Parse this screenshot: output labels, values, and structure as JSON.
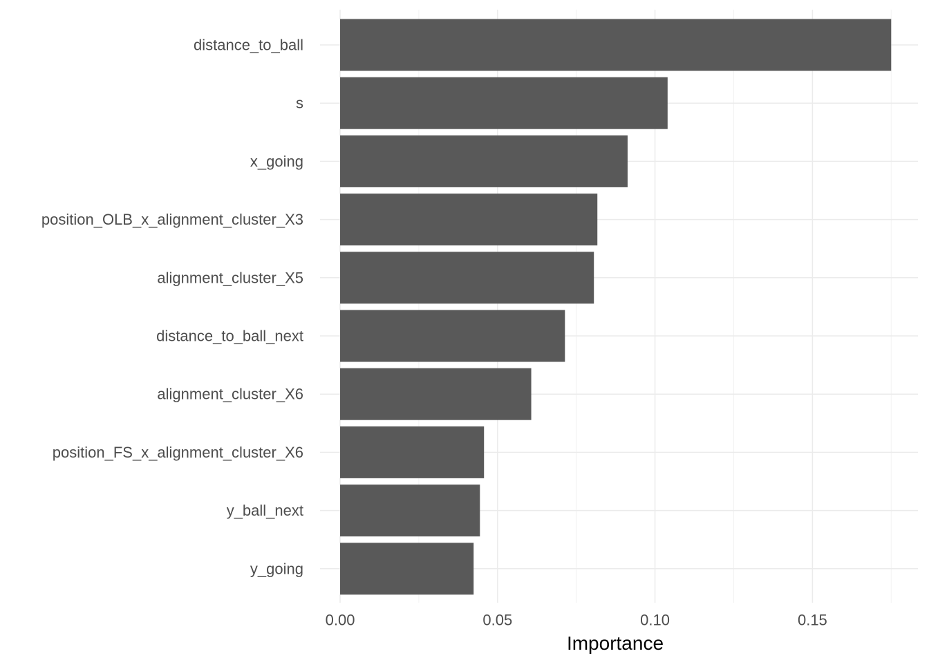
{
  "chart_data": {
    "type": "bar",
    "orientation": "horizontal",
    "title": "",
    "xlabel": "Importance",
    "ylabel": "",
    "xlim": [
      -0.0033,
      0.1835
    ],
    "grid": true,
    "x_ticks": [
      {
        "value": 0.0,
        "label": "0.00"
      },
      {
        "value": 0.05,
        "label": "0.05"
      },
      {
        "value": 0.1,
        "label": "0.10"
      },
      {
        "value": 0.15,
        "label": "0.15"
      }
    ],
    "x_minor_ticks": [
      0.025,
      0.075,
      0.125,
      0.175
    ],
    "categories": [
      "distance_to_ball",
      "s",
      "x_going",
      "position_OLB_x_alignment_cluster_X3",
      "alignment_cluster_X5",
      "distance_to_ball_next",
      "alignment_cluster_X6",
      "position_FS_x_alignment_cluster_X6",
      "y_ball_next",
      "y_going"
    ],
    "values": [
      0.175,
      0.104,
      0.0913,
      0.0817,
      0.0806,
      0.0714,
      0.0607,
      0.0457,
      0.0444,
      0.0424
    ],
    "colors": {
      "bar": "#595959",
      "grid_major": "#ebebeb",
      "grid_minor": "#f2f2f2",
      "tick_label": "#4d4d4d",
      "axis_title": "#000000",
      "background": "#ffffff"
    }
  }
}
